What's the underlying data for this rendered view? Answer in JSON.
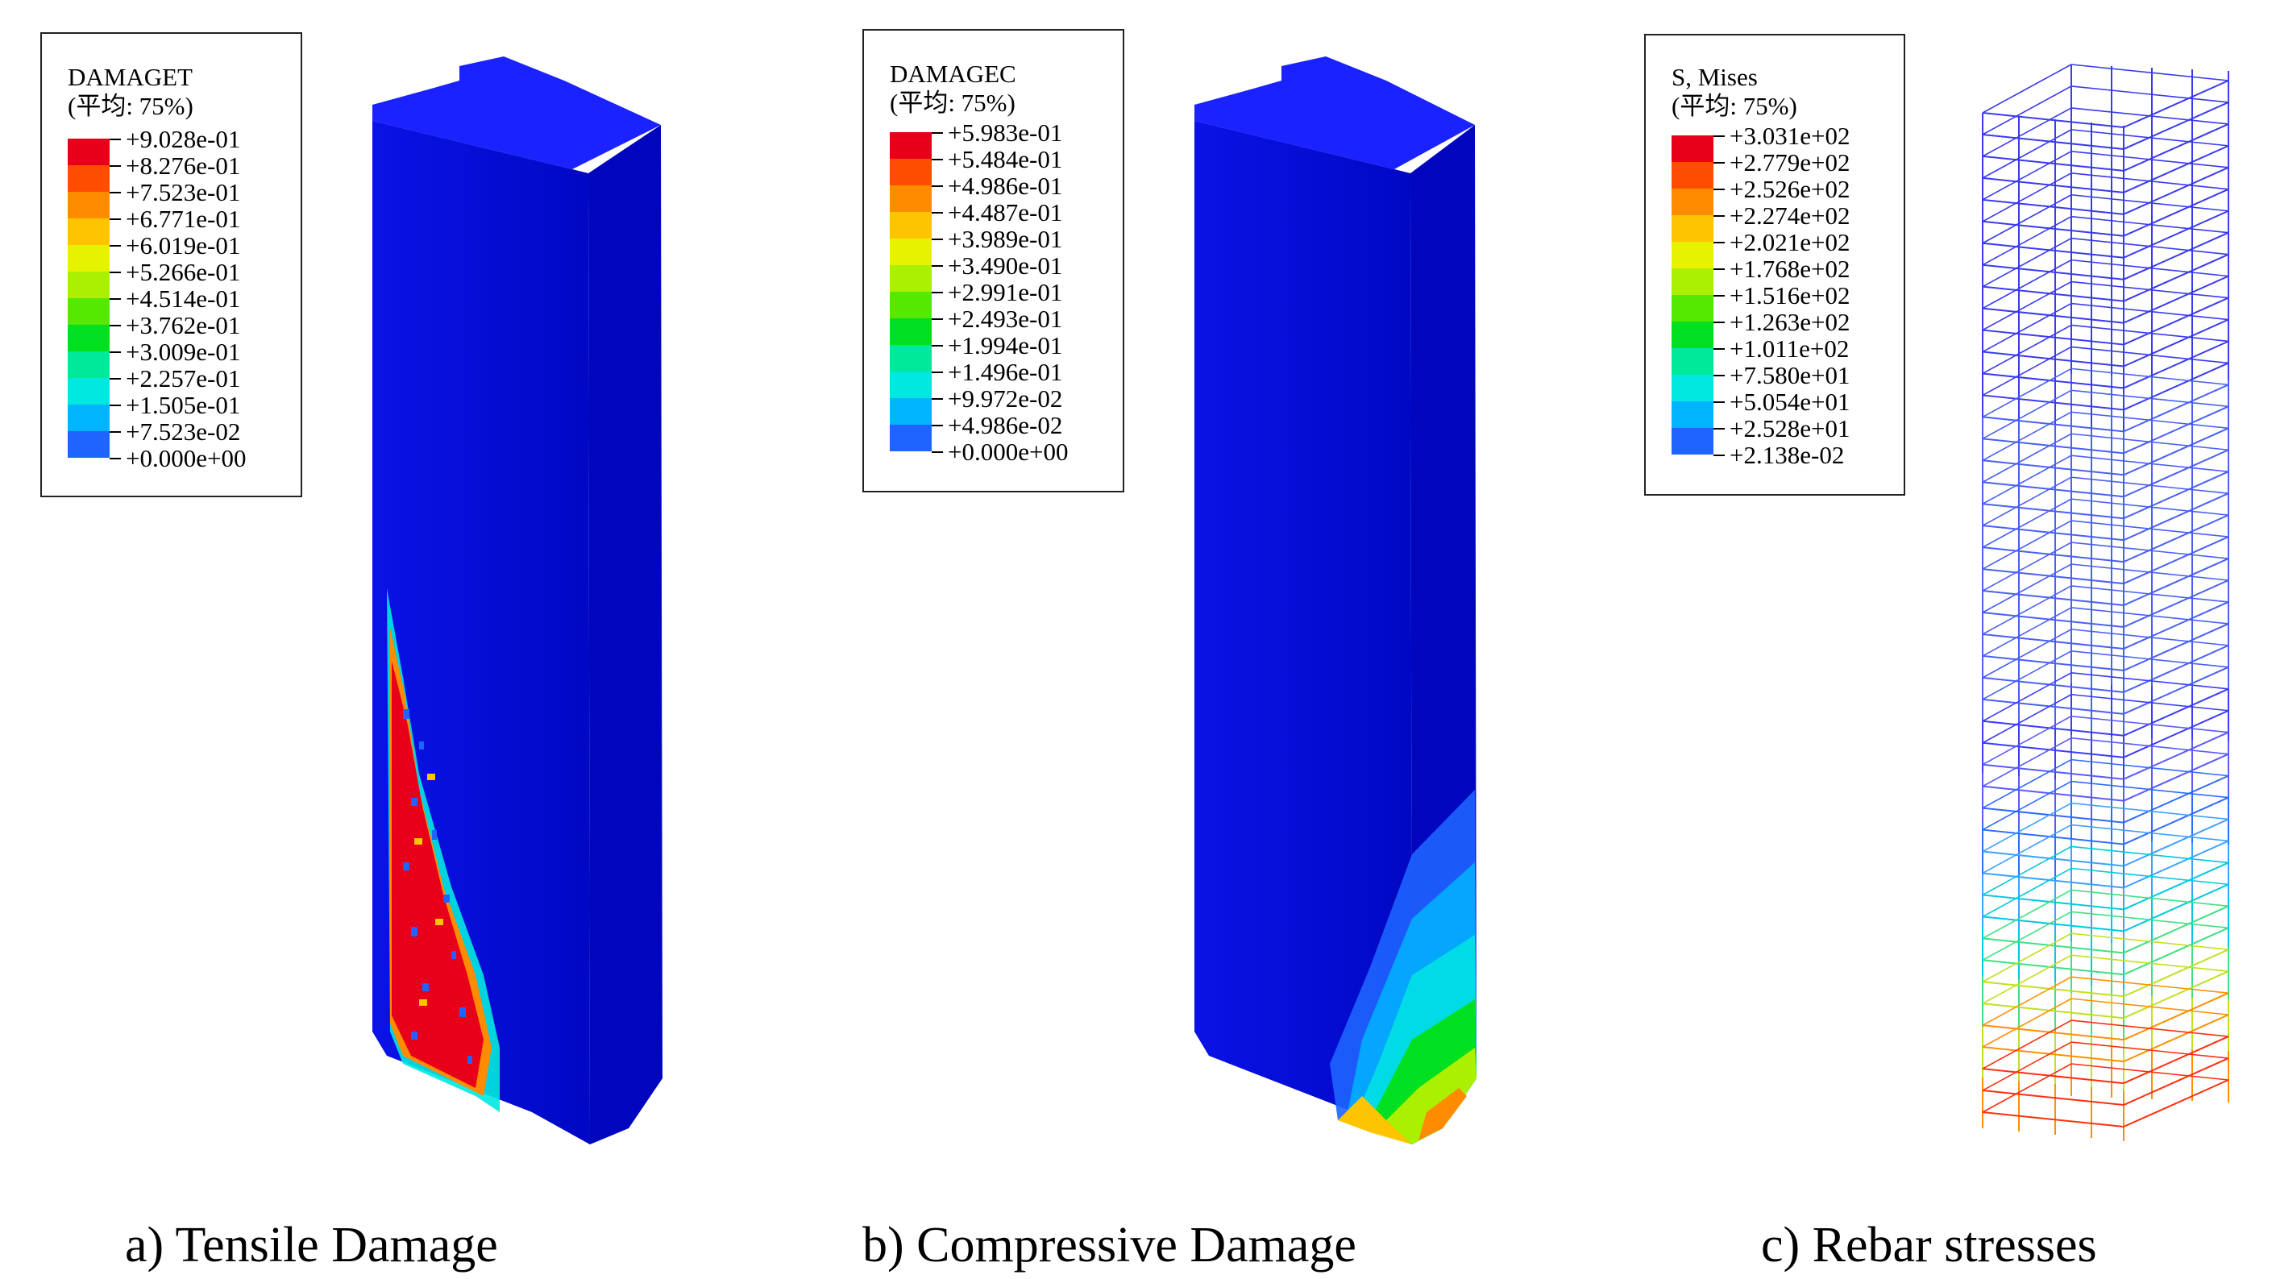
{
  "panels": [
    {
      "legend": {
        "title": "DAMAGET",
        "averaging": "(平均: 75%)",
        "values": [
          "+9.028e-01",
          "+8.276e-01",
          "+7.523e-01",
          "+6.771e-01",
          "+6.019e-01",
          "+5.266e-01",
          "+4.514e-01",
          "+3.762e-01",
          "+3.009e-01",
          "+2.257e-01",
          "+1.505e-01",
          "+7.523e-02",
          "+0.000e+00"
        ]
      },
      "caption": "a) Tensile Damage"
    },
    {
      "legend": {
        "title": "DAMAGEC",
        "averaging": "(平均: 75%)",
        "values": [
          "+5.983e-01",
          "+5.484e-01",
          "+4.986e-01",
          "+4.487e-01",
          "+3.989e-01",
          "+3.490e-01",
          "+2.991e-01",
          "+2.493e-01",
          "+1.994e-01",
          "+1.496e-01",
          "+9.972e-02",
          "+4.986e-02",
          "+0.000e+00"
        ]
      },
      "caption": "b) Compressive Damage"
    },
    {
      "legend": {
        "title": "S, Mises",
        "averaging": "(平均: 75%)",
        "values": [
          "+3.031e+02",
          "+2.779e+02",
          "+2.526e+02",
          "+2.274e+02",
          "+2.021e+02",
          "+1.768e+02",
          "+1.516e+02",
          "+1.263e+02",
          "+1.011e+02",
          "+7.580e+01",
          "+5.054e+01",
          "+2.528e+01",
          "+2.138e-02"
        ]
      },
      "caption": "c) Rebar stresses"
    }
  ],
  "colormap": [
    "#e8001a",
    "#ff4d00",
    "#ff8c00",
    "#ffc400",
    "#e6f200",
    "#aaf000",
    "#55e800",
    "#00e020",
    "#00e89a",
    "#00e8e0",
    "#00b4ff",
    "#1e64ff",
    "#0000f0"
  ]
}
